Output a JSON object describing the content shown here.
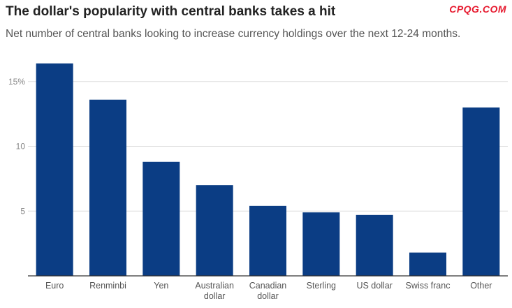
{
  "header": {
    "title": "The dollar's popularity with central banks takes a hit",
    "subtitle": "Net number of central banks looking to increase currency holdings over the next 12-24 months.",
    "watermark": "CPQG.COM"
  },
  "colors": {
    "bar": "#0b3d84",
    "grid": "#dddddd",
    "axis": "#333333"
  },
  "chart_data": {
    "type": "bar",
    "title": "The dollar's popularity with central banks takes a hit",
    "subtitle": "Net number of central banks looking to increase currency holdings over the next 12-24 months.",
    "categories": [
      [
        "Euro"
      ],
      [
        "Renminbi"
      ],
      [
        "Yen"
      ],
      [
        "Australian",
        "dollar"
      ],
      [
        "Canadian",
        "dollar"
      ],
      [
        "Sterling"
      ],
      [
        "US dollar"
      ],
      [
        "Swiss franc"
      ],
      [
        "Other"
      ]
    ],
    "values": [
      16.4,
      13.6,
      8.8,
      7.0,
      5.4,
      4.9,
      4.7,
      1.8,
      13.0
    ],
    "ylim": [
      0,
      17
    ],
    "yticks": [
      {
        "v": 5,
        "label": "5"
      },
      {
        "v": 10,
        "label": "10"
      },
      {
        "v": 15,
        "label": "15%"
      }
    ],
    "grid": true,
    "xlabel": "",
    "ylabel": ""
  }
}
